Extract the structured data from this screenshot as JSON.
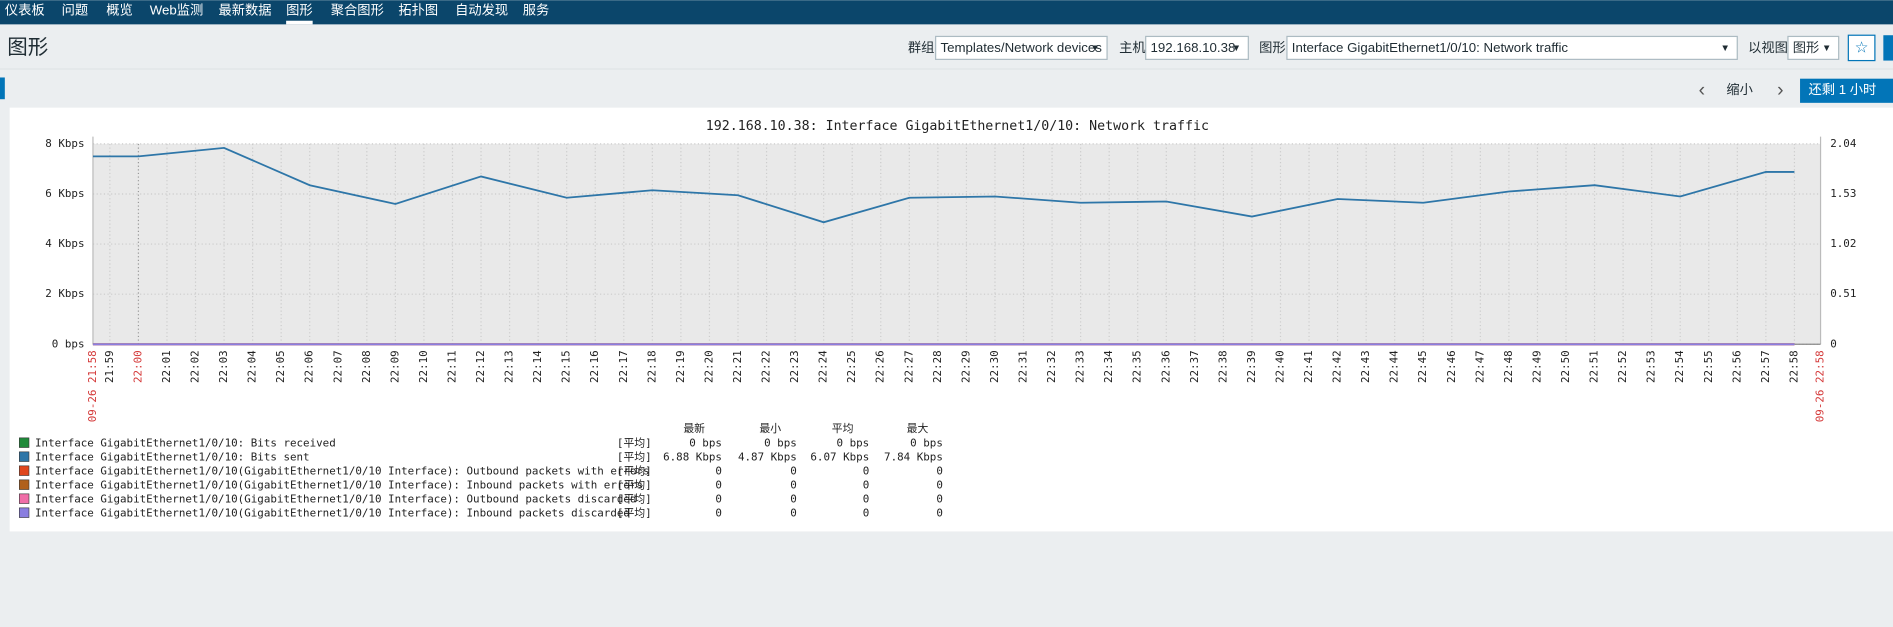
{
  "nav": [
    "仪表板",
    "问题",
    "概览",
    "Web监测",
    "最新数据",
    "图形",
    "聚合图形",
    "拓扑图",
    "自动发现",
    "服务"
  ],
  "page_title": "图形",
  "filters": [
    {
      "label": "群组",
      "value": "Templates/Network devices"
    },
    {
      "label": "主机",
      "value": "192.168.10.38"
    },
    {
      "label": "图形",
      "value": "Interface GigabitEthernet1/0/10: Network traffic"
    },
    {
      "label": "以视图",
      "value": "图形"
    }
  ],
  "time_controls": {
    "zoom_out": "缩小",
    "range": "还剩 1 小时"
  },
  "chart_data": {
    "type": "line",
    "title": "192.168.10.38: Interface GigabitEthernet1/0/10: Network traffic",
    "xlim": [
      "09-26 21:58",
      "09-26 22:58"
    ],
    "xticks": [
      "21:59",
      "22:00",
      "22:01",
      "22:02",
      "22:03",
      "22:04",
      "22:05",
      "22:06",
      "22:07",
      "22:08",
      "22:09",
      "22:10",
      "22:11",
      "22:12",
      "22:13",
      "22:14",
      "22:15",
      "22:16",
      "22:17",
      "22:18",
      "22:19",
      "22:20",
      "22:21",
      "22:22",
      "22:23",
      "22:24",
      "22:25",
      "22:26",
      "22:27",
      "22:28",
      "22:29",
      "22:30",
      "22:31",
      "22:32",
      "22:33",
      "22:34",
      "22:35",
      "22:36",
      "22:37",
      "22:38",
      "22:39",
      "22:40",
      "22:41",
      "22:42",
      "22:43",
      "22:44",
      "22:45",
      "22:46",
      "22:47",
      "22:48",
      "22:49",
      "22:50",
      "22:51",
      "22:52",
      "22:53",
      "22:54",
      "22:55",
      "22:56",
      "22:57",
      "22:58"
    ],
    "ylim": [
      0,
      8
    ],
    "yticks": [
      {
        "value": 0,
        "label": "0 bps"
      },
      {
        "value": 2,
        "label": "2 Kbps"
      },
      {
        "value": 4,
        "label": "4 Kbps"
      },
      {
        "value": 6,
        "label": "6 Kbps"
      },
      {
        "value": 8,
        "label": "8 Kbps"
      }
    ],
    "y2lim": [
      0,
      2.04
    ],
    "y2ticks": [
      0,
      0.51,
      1.02,
      1.53,
      2.04
    ],
    "grid": true,
    "x": [
      "21:58",
      "22:00",
      "22:03",
      "22:06",
      "22:09",
      "22:12",
      "22:15",
      "22:18",
      "22:21",
      "22:24",
      "22:27",
      "22:30",
      "22:33",
      "22:36",
      "22:39",
      "22:42",
      "22:45",
      "22:48",
      "22:51",
      "22:54",
      "22:57",
      "22:58"
    ],
    "series": [
      {
        "name": "Interface GigabitEthernet1/0/10: Bits received",
        "color": "#1f8a3a",
        "values": [
          0,
          0,
          0,
          0,
          0,
          0,
          0,
          0,
          0,
          0,
          0,
          0,
          0,
          0,
          0,
          0,
          0,
          0,
          0,
          0,
          0,
          0
        ]
      },
      {
        "name": "Interface GigabitEthernet1/0/10: Bits sent",
        "color": "#2e76a8",
        "values": [
          7.5,
          7.5,
          7.84,
          6.35,
          5.6,
          6.7,
          5.85,
          6.15,
          5.95,
          4.87,
          5.85,
          5.9,
          5.65,
          5.7,
          5.1,
          5.8,
          5.65,
          6.1,
          6.35,
          5.9,
          6.88,
          6.88
        ]
      },
      {
        "name": "Interface GigabitEthernet1/0/10(GigabitEthernet1/0/10 Interface): Outbound packets with errors",
        "color": "#e0461c",
        "values": [
          0,
          0,
          0,
          0,
          0,
          0,
          0,
          0,
          0,
          0,
          0,
          0,
          0,
          0,
          0,
          0,
          0,
          0,
          0,
          0,
          0,
          0
        ]
      },
      {
        "name": "Interface GigabitEthernet1/0/10(GigabitEthernet1/0/10 Interface): Inbound packets with errors",
        "color": "#b0601c",
        "values": [
          0,
          0,
          0,
          0,
          0,
          0,
          0,
          0,
          0,
          0,
          0,
          0,
          0,
          0,
          0,
          0,
          0,
          0,
          0,
          0,
          0,
          0
        ]
      },
      {
        "name": "Interface GigabitEthernet1/0/10(GigabitEthernet1/0/10 Interface): Outbound packets discarded",
        "color": "#f06ea8",
        "values": [
          0,
          0,
          0,
          0,
          0,
          0,
          0,
          0,
          0,
          0,
          0,
          0,
          0,
          0,
          0,
          0,
          0,
          0,
          0,
          0,
          0,
          0
        ]
      },
      {
        "name": "Interface GigabitEthernet1/0/10(GigabitEthernet1/0/10 Interface): Inbound packets discarded",
        "color": "#8a7ee0",
        "values": [
          0,
          0,
          0,
          0,
          0,
          0,
          0,
          0,
          0,
          0,
          0,
          0,
          0,
          0,
          0,
          0,
          0,
          0,
          0,
          0,
          0,
          0
        ]
      }
    ]
  },
  "legend_stats": {
    "headers": [
      "最新",
      "最小",
      "平均",
      "最大"
    ],
    "rows": [
      [
        "[平均]",
        "0 bps",
        "0 bps",
        "0 bps",
        "0 bps"
      ],
      [
        "[平均]",
        "6.88 Kbps",
        "4.87 Kbps",
        "6.07 Kbps",
        "7.84 Kbps"
      ],
      [
        "[平均]",
        "0",
        "0",
        "0",
        "0"
      ],
      [
        "[平均]",
        "0",
        "0",
        "0",
        "0"
      ],
      [
        "[平均]",
        "0",
        "0",
        "0",
        "0"
      ],
      [
        "[平均]",
        "0",
        "0",
        "0",
        "0"
      ]
    ]
  }
}
